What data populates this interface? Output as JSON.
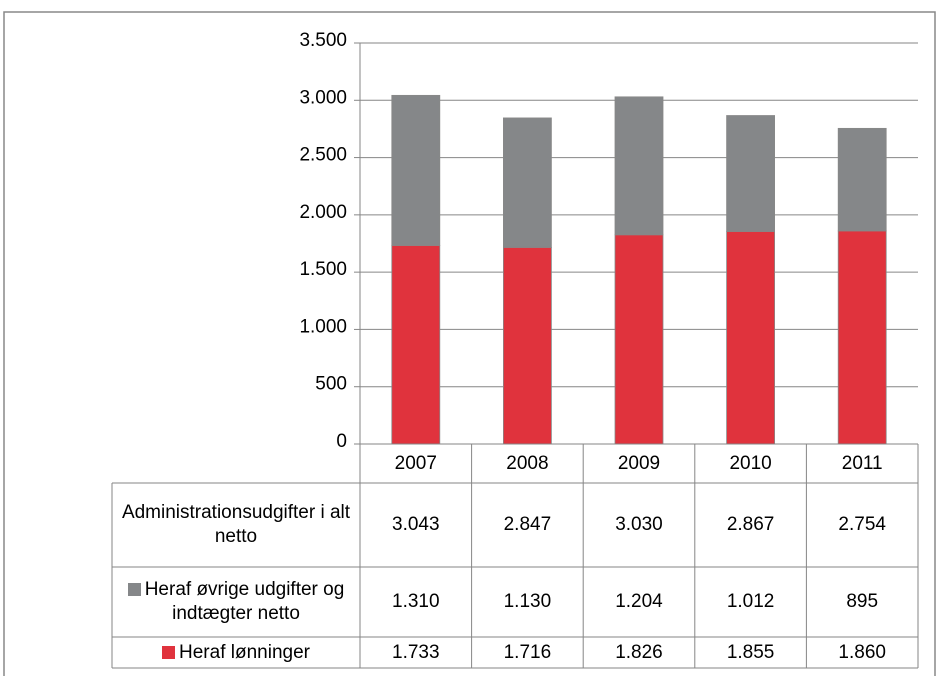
{
  "chart_data": {
    "type": "stacked_bar",
    "categories": [
      "2007",
      "2008",
      "2009",
      "2010",
      "2011"
    ],
    "series": [
      {
        "name": "Heraf lønninger",
        "color": "#e0333d",
        "values": [
          1733,
          1716,
          1826,
          1855,
          1860
        ],
        "value_labels": [
          "1.733",
          "1.716",
          "1.826",
          "1.855",
          "1.860"
        ]
      },
      {
        "name": "Heraf øvrige udgifter og indtægter netto",
        "color": "#858789",
        "values": [
          1310,
          1130,
          1204,
          1012,
          895
        ],
        "value_labels": [
          "1.310",
          "1.130",
          "1.204",
          "1.012",
          "895"
        ]
      }
    ],
    "total": {
      "name": "Administrationsudgifter i alt netto",
      "values": [
        3043,
        2847,
        3030,
        2867,
        2754
      ],
      "value_labels": [
        "3.043",
        "2.847",
        "3.030",
        "2.867",
        "2.754"
      ]
    },
    "ylim": [
      0,
      3500
    ],
    "yticks": [
      0,
      500,
      {
        "value": 1000,
        "label": "1.000"
      },
      {
        "value": 1500,
        "label": "1.500"
      },
      {
        "value": 2000,
        "label": "2.000"
      },
      {
        "value": 2500,
        "label": "2.500"
      },
      {
        "value": 3000,
        "label": "3.000"
      },
      {
        "value": 3500,
        "label": "3.500"
      }
    ],
    "grid": true
  }
}
